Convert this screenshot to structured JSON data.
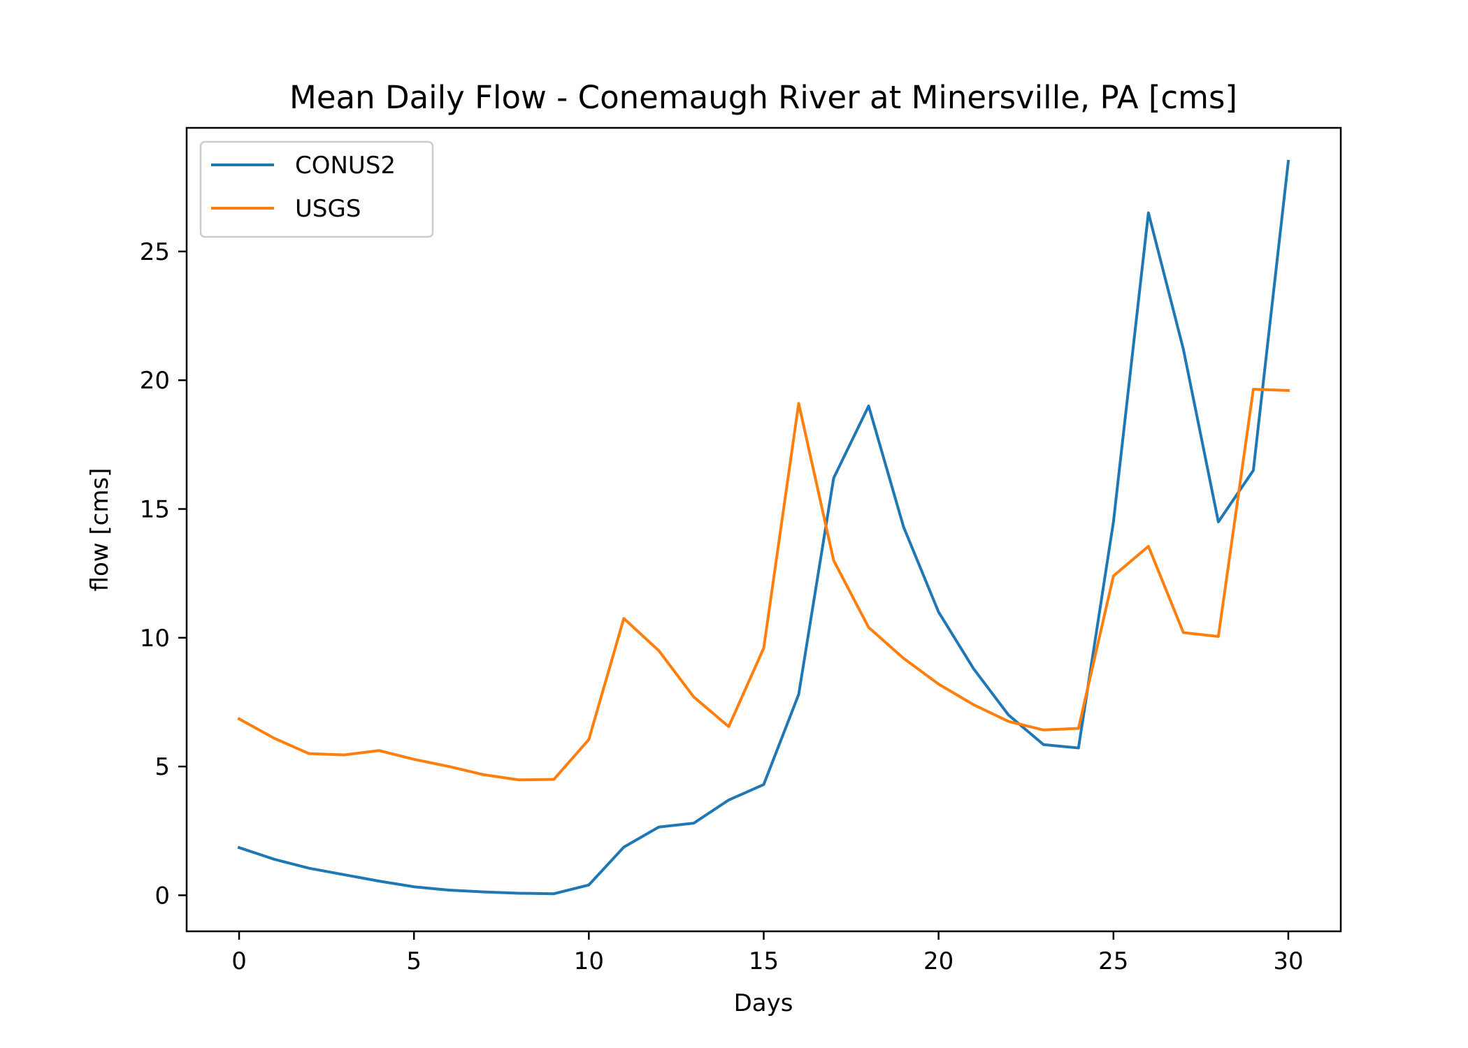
{
  "chart_data": {
    "type": "line",
    "title": "Mean Daily Flow - Conemaugh River at Minersville, PA [cms]",
    "xlabel": "Days",
    "ylabel": "flow [cms]",
    "xlim": [
      -1.5,
      31.5
    ],
    "ylim": [
      -1.4,
      29.8
    ],
    "xticks": [
      0,
      5,
      10,
      15,
      20,
      25,
      30
    ],
    "yticks": [
      0,
      5,
      10,
      15,
      20,
      25
    ],
    "grid": false,
    "legend_position": "upper-left",
    "x": [
      0,
      1,
      2,
      3,
      4,
      5,
      6,
      7,
      8,
      9,
      10,
      11,
      12,
      13,
      14,
      15,
      16,
      17,
      18,
      19,
      20,
      21,
      22,
      23,
      24,
      25,
      26,
      27,
      28,
      29,
      30
    ],
    "series": [
      {
        "name": "CONUS2",
        "color": "#1f77b4",
        "values": [
          1.85,
          1.4,
          1.05,
          0.8,
          0.55,
          0.33,
          0.2,
          0.13,
          0.08,
          0.06,
          0.4,
          1.87,
          2.65,
          2.8,
          3.7,
          4.3,
          7.8,
          16.2,
          19.0,
          14.3,
          11.0,
          8.8,
          7.0,
          5.85,
          5.72,
          14.5,
          26.5,
          21.2,
          14.5,
          16.5,
          28.5
        ]
      },
      {
        "name": "USGS",
        "color": "#ff7f0e",
        "values": [
          6.85,
          6.1,
          5.5,
          5.45,
          5.62,
          5.28,
          5.0,
          4.68,
          4.48,
          4.5,
          6.05,
          10.75,
          9.5,
          7.7,
          6.55,
          9.6,
          19.1,
          13.0,
          10.4,
          9.2,
          8.2,
          7.4,
          6.75,
          6.42,
          6.48,
          12.4,
          13.55,
          10.2,
          10.05,
          19.65,
          19.6
        ]
      }
    ]
  }
}
